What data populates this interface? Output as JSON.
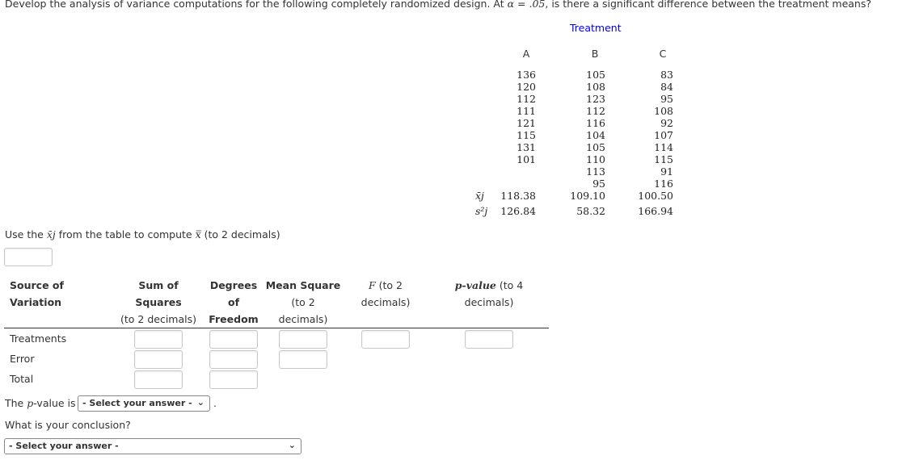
{
  "question": {
    "text_before": "Develop the analysis of variance computations for the following completely randomized design. At ",
    "alpha": "α = .05",
    "text_after": ", is there a significant difference between the treatment means?"
  },
  "treatment_table": {
    "title": "Treatment",
    "columns": [
      {
        "label": "A",
        "values": [
          "136",
          "120",
          "112",
          "111",
          "121",
          "115",
          "131",
          "101"
        ],
        "mean": "118.38",
        "variance": "126.84"
      },
      {
        "label": "B",
        "values": [
          "105",
          "108",
          "123",
          "112",
          "116",
          "104",
          "105",
          "110",
          "113",
          "95"
        ],
        "mean": "109.10",
        "variance": "58.32"
      },
      {
        "label": "C",
        "values": [
          "83",
          "84",
          "95",
          "108",
          "92",
          "107",
          "114",
          "115",
          "91",
          "116"
        ],
        "mean": "100.50",
        "variance": "166.94"
      }
    ],
    "mean_label": "x̄j",
    "variance_label": "s²j"
  },
  "grand_mean_prompt": {
    "before": "Use the ",
    "xbar": "x̄j",
    "middle": " from the table to compute ",
    "xbarbar": "x̿",
    "after": " (to 2 decimals)"
  },
  "anova": {
    "headers": [
      [
        "Source of",
        "Variation",
        ""
      ],
      [
        "Sum of",
        "Squares",
        "(to 2 decimals)"
      ],
      [
        "Degrees",
        "of",
        "Freedom"
      ],
      [
        "Mean Square",
        "(to 2",
        "decimals)"
      ],
      [
        "F",
        " (to 2",
        "decimals)"
      ],
      [
        "p-value",
        " (to 4",
        "decimals)"
      ]
    ],
    "rows": [
      "Treatments",
      "Error",
      "Total"
    ]
  },
  "pvalue_sentence": {
    "before": "The ",
    "p": "p",
    "after": "-value is",
    "end": "."
  },
  "pvalue_select": "- Select your answer -",
  "conclusion_question": "What is your conclusion?",
  "conclusion_select": "- Select your answer -",
  "colors": {
    "title_blue": "#0000ff"
  }
}
